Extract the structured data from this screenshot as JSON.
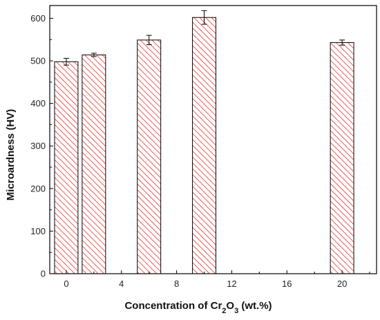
{
  "chart_data": {
    "type": "bar",
    "x": [
      0,
      2,
      6,
      10,
      20
    ],
    "values": [
      498,
      514,
      549,
      602,
      543
    ],
    "errors": [
      8,
      4,
      11,
      16,
      6
    ],
    "xlabel_main": "Concentration of Cr",
    "xlabel_sub1": "2",
    "xlabel_mid": "O",
    "xlabel_sub2": "3",
    "xlabel_tail": " (wt.%)",
    "ylabel": "Microardness (HV)",
    "xlim": [
      -1.2,
      22.5
    ],
    "ylim": [
      0,
      630
    ],
    "xticks": [
      0,
      4,
      8,
      12,
      16,
      20
    ],
    "yticks": [
      0,
      100,
      200,
      300,
      400,
      500,
      600
    ],
    "bar_width": 1.7,
    "grid": false,
    "colors": {
      "bar_hatch": "#e8302a",
      "bar_edge": "#000000",
      "axis": "#000000"
    }
  }
}
